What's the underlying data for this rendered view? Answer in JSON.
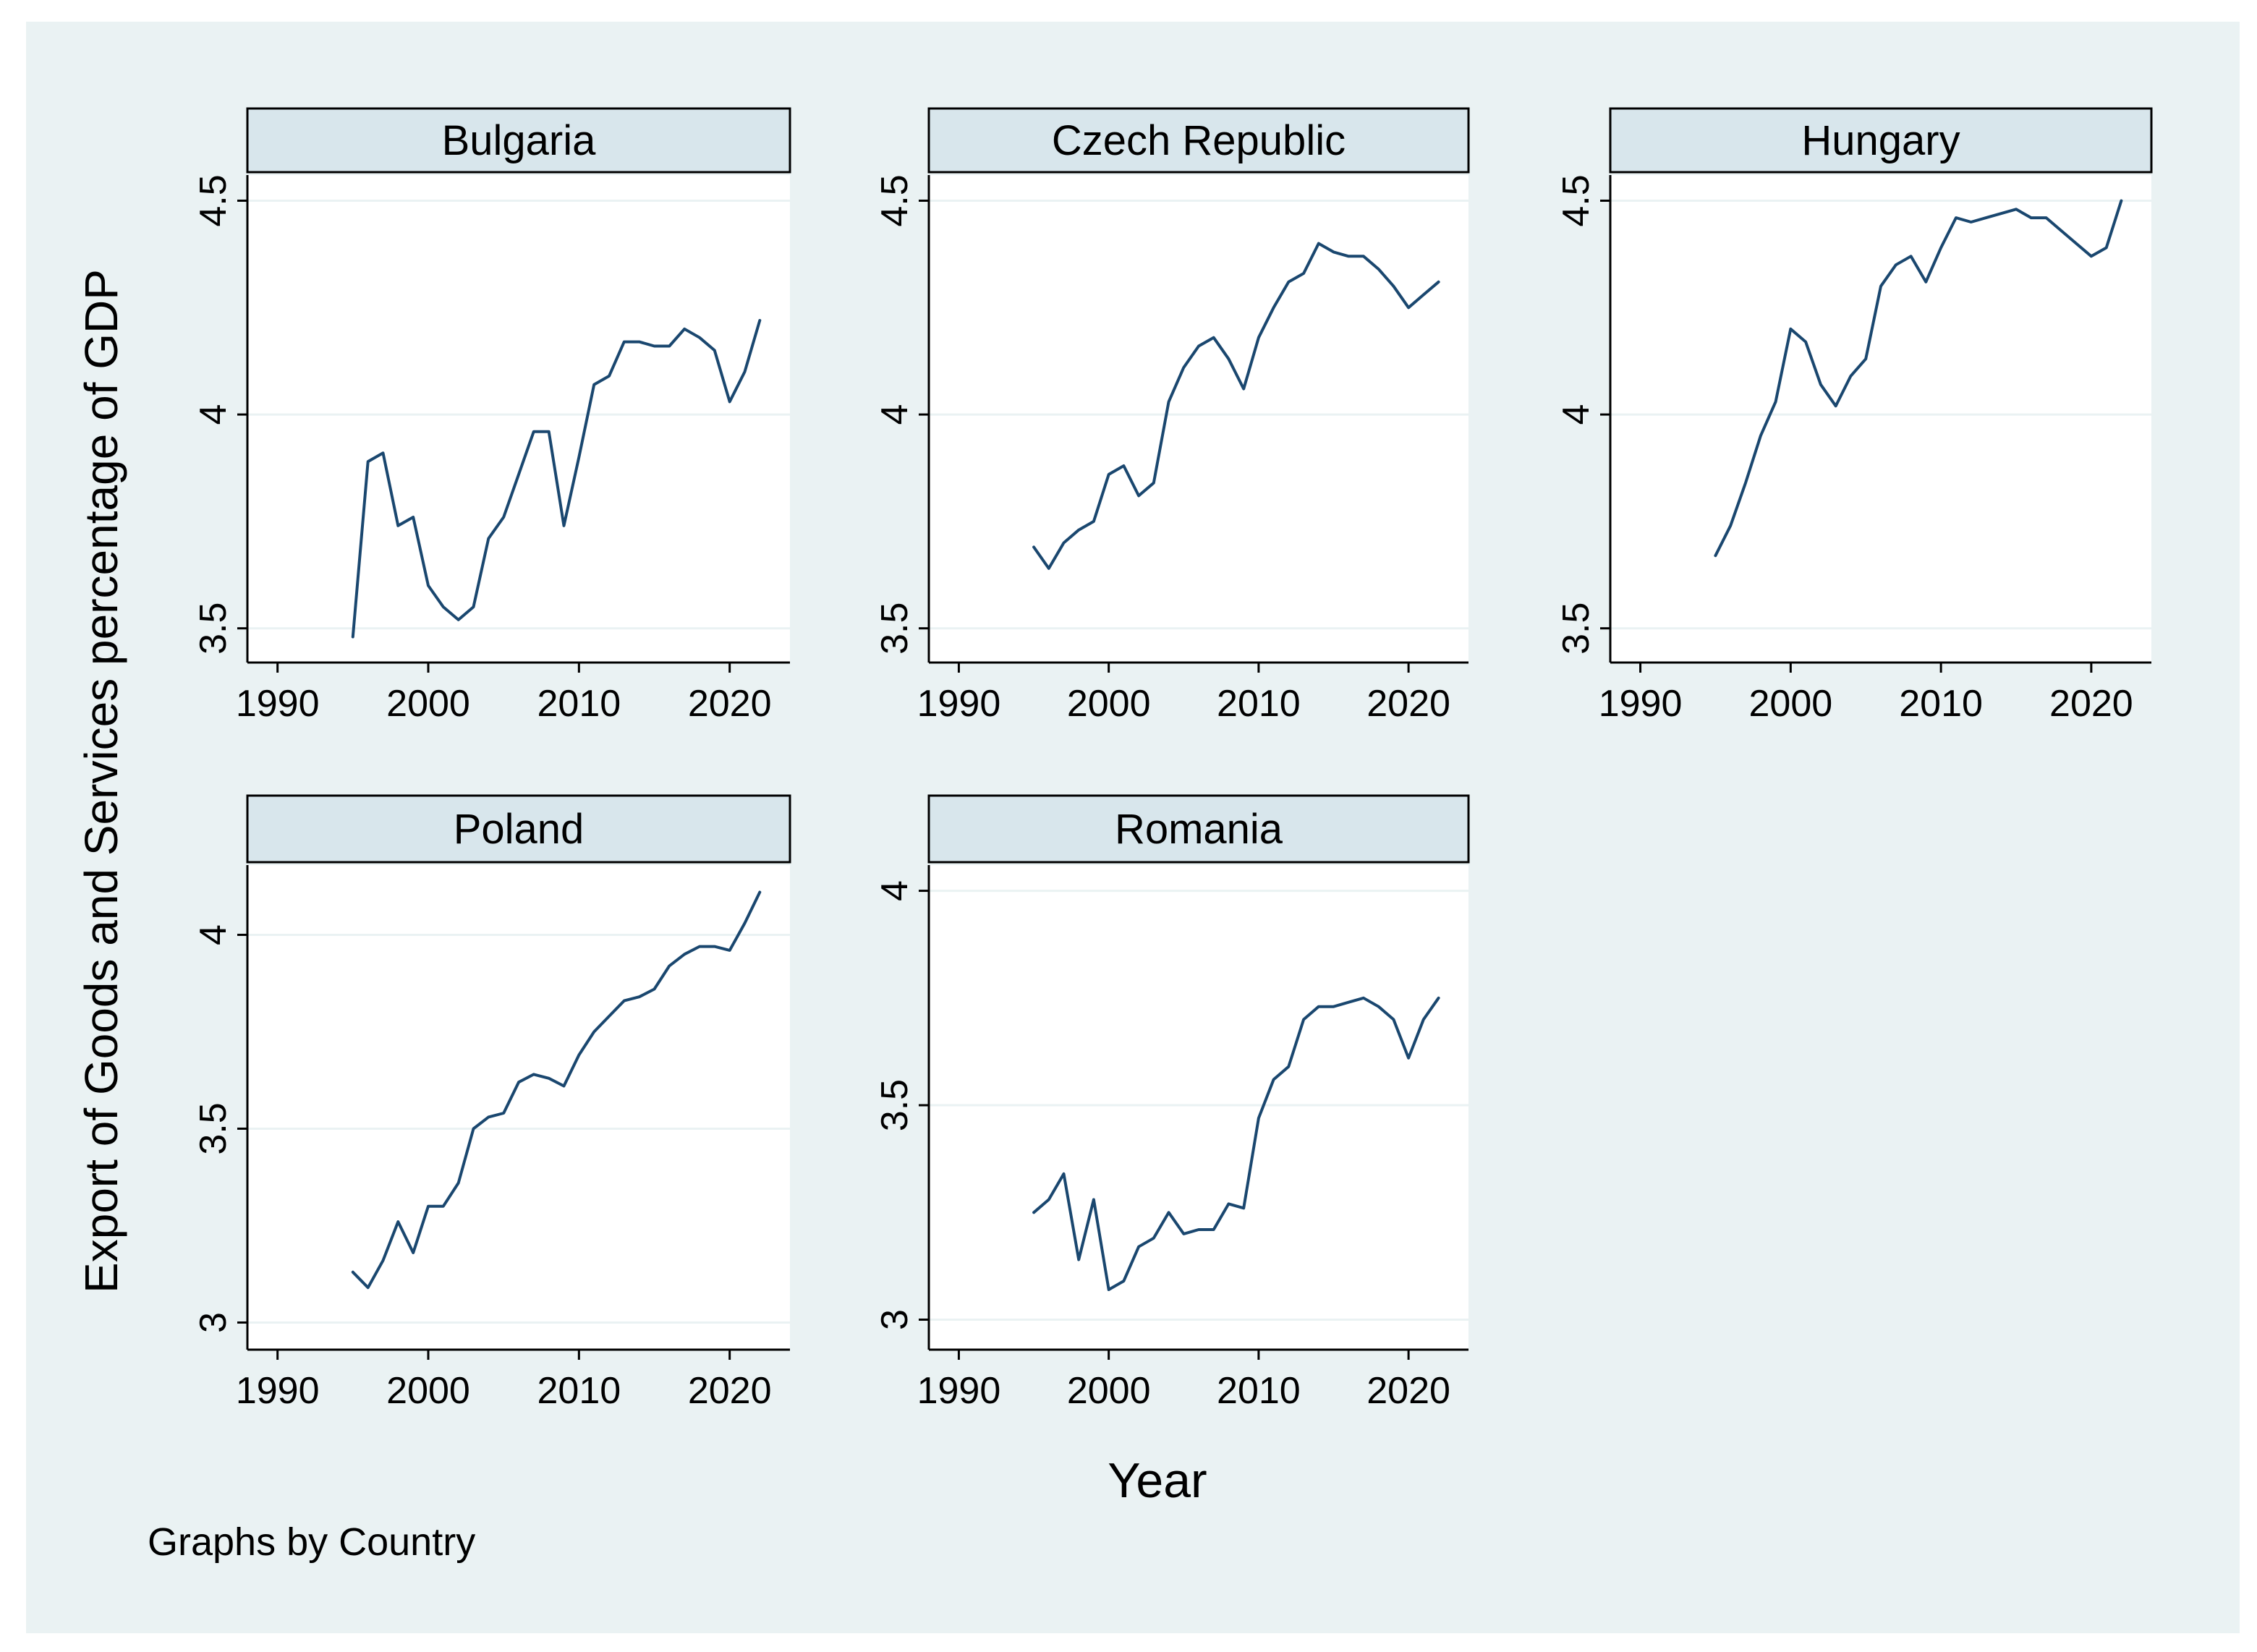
{
  "note": "Graphs by Country",
  "ytitle": "Export of Goods and Services percentage of GDP",
  "xtitle": "Year",
  "colors": {
    "outer_bg": "#eaf2f3",
    "plot_bg": "#ffffff",
    "strip_bg": "#d8e6ec",
    "line": "#1a476f",
    "grid": "#eaf2f3",
    "axis": "#000000"
  },
  "chart_data": [
    {
      "type": "line",
      "title": "Bulgaria",
      "xlim": [
        1988,
        2024
      ],
      "ylim": [
        3.42,
        4.56
      ],
      "xticks": [
        1990,
        2000,
        2010,
        2020
      ],
      "xtick_labels": [
        "1990",
        "2000",
        "2010",
        "2020"
      ],
      "yticks": [
        3.5,
        4,
        4.5
      ],
      "ytick_labels": [
        "3.5",
        "4",
        "4.5"
      ],
      "x": [
        1995,
        1996,
        1997,
        1998,
        1999,
        2000,
        2001,
        2002,
        2003,
        2004,
        2005,
        2006,
        2007,
        2008,
        2009,
        2010,
        2011,
        2012,
        2013,
        2014,
        2015,
        2016,
        2017,
        2018,
        2019,
        2020,
        2021,
        2022
      ],
      "y": [
        3.48,
        3.89,
        3.91,
        3.74,
        3.76,
        3.6,
        3.55,
        3.52,
        3.55,
        3.71,
        3.76,
        3.86,
        3.96,
        3.96,
        3.74,
        3.9,
        4.07,
        4.09,
        4.17,
        4.17,
        4.16,
        4.16,
        4.2,
        4.18,
        4.15,
        4.03,
        4.1,
        4.22
      ]
    },
    {
      "type": "line",
      "title": "Czech Republic",
      "xlim": [
        1988,
        2024
      ],
      "ylim": [
        3.42,
        4.56
      ],
      "xticks": [
        1990,
        2000,
        2010,
        2020
      ],
      "xtick_labels": [
        "1990",
        "2000",
        "2010",
        "2020"
      ],
      "yticks": [
        3.5,
        4,
        4.5
      ],
      "ytick_labels": [
        "3.5",
        "4",
        "4.5"
      ],
      "x": [
        1995,
        1996,
        1997,
        1998,
        1999,
        2000,
        2001,
        2002,
        2003,
        2004,
        2005,
        2006,
        2007,
        2008,
        2009,
        2010,
        2011,
        2012,
        2013,
        2014,
        2015,
        2016,
        2017,
        2018,
        2019,
        2020,
        2021,
        2022
      ],
      "y": [
        3.69,
        3.64,
        3.7,
        3.73,
        3.75,
        3.86,
        3.88,
        3.81,
        3.84,
        4.03,
        4.11,
        4.16,
        4.18,
        4.13,
        4.06,
        4.18,
        4.25,
        4.31,
        4.33,
        4.4,
        4.38,
        4.37,
        4.37,
        4.34,
        4.3,
        4.25,
        4.28,
        4.31
      ]
    },
    {
      "type": "line",
      "title": "Hungary",
      "xlim": [
        1988,
        2024
      ],
      "ylim": [
        3.42,
        4.56
      ],
      "xticks": [
        1990,
        2000,
        2010,
        2020
      ],
      "xtick_labels": [
        "1990",
        "2000",
        "2010",
        "2020"
      ],
      "yticks": [
        3.5,
        4,
        4.5
      ],
      "ytick_labels": [
        "3.5",
        "4",
        "4.5"
      ],
      "x": [
        1995,
        1996,
        1997,
        1998,
        1999,
        2000,
        2001,
        2002,
        2003,
        2004,
        2005,
        2006,
        2007,
        2008,
        2009,
        2010,
        2011,
        2012,
        2013,
        2014,
        2015,
        2016,
        2017,
        2018,
        2019,
        2020,
        2021,
        2022
      ],
      "y": [
        3.67,
        3.74,
        3.84,
        3.95,
        4.03,
        4.2,
        4.17,
        4.07,
        4.02,
        4.09,
        4.13,
        4.3,
        4.35,
        4.37,
        4.31,
        4.39,
        4.46,
        4.45,
        4.46,
        4.47,
        4.48,
        4.46,
        4.46,
        4.43,
        4.4,
        4.37,
        4.39,
        4.5
      ]
    },
    {
      "type": "line",
      "title": "Poland",
      "xlim": [
        1988,
        2024
      ],
      "ylim": [
        2.93,
        4.18
      ],
      "xticks": [
        1990,
        2000,
        2010,
        2020
      ],
      "xtick_labels": [
        "1990",
        "2000",
        "2010",
        "2020"
      ],
      "yticks": [
        3,
        3.5,
        4
      ],
      "ytick_labels": [
        "3",
        "3.5",
        "4"
      ],
      "x": [
        1995,
        1996,
        1997,
        1998,
        1999,
        2000,
        2001,
        2002,
        2003,
        2004,
        2005,
        2006,
        2007,
        2008,
        2009,
        2010,
        2011,
        2012,
        2013,
        2014,
        2015,
        2016,
        2017,
        2018,
        2019,
        2020,
        2021,
        2022
      ],
      "y": [
        3.13,
        3.09,
        3.16,
        3.26,
        3.18,
        3.3,
        3.3,
        3.36,
        3.5,
        3.53,
        3.54,
        3.62,
        3.64,
        3.63,
        3.61,
        3.69,
        3.75,
        3.79,
        3.83,
        3.84,
        3.86,
        3.92,
        3.95,
        3.97,
        3.97,
        3.96,
        4.03,
        4.11
      ]
    },
    {
      "type": "line",
      "title": "Romania",
      "xlim": [
        1988,
        2024
      ],
      "ylim": [
        2.93,
        4.06
      ],
      "xticks": [
        1990,
        2000,
        2010,
        2020
      ],
      "xtick_labels": [
        "1990",
        "2000",
        "2010",
        "2020"
      ],
      "yticks": [
        3,
        3.5,
        4
      ],
      "ytick_labels": [
        "3",
        "3.5",
        "4"
      ],
      "x": [
        1995,
        1996,
        1997,
        1998,
        1999,
        2000,
        2001,
        2002,
        2003,
        2004,
        2005,
        2006,
        2007,
        2008,
        2009,
        2010,
        2011,
        2012,
        2013,
        2014,
        2015,
        2016,
        2017,
        2018,
        2019,
        2020,
        2021,
        2022
      ],
      "y": [
        3.25,
        3.28,
        3.34,
        3.14,
        3.28,
        3.07,
        3.09,
        3.17,
        3.19,
        3.25,
        3.2,
        3.21,
        3.21,
        3.27,
        3.26,
        3.47,
        3.56,
        3.59,
        3.7,
        3.73,
        3.73,
        3.74,
        3.75,
        3.73,
        3.7,
        3.61,
        3.7,
        3.75
      ]
    }
  ]
}
